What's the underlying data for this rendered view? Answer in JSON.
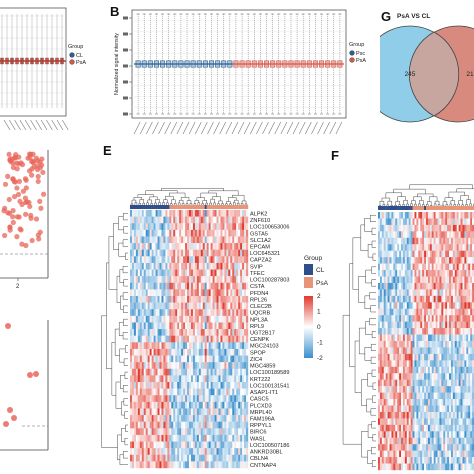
{
  "panels": {
    "a_right_edge": {
      "legend": {
        "title": "Group",
        "items": [
          {
            "name": "CL",
            "color": "#2e5d8e"
          },
          {
            "name": "PsA",
            "color": "#d2584a"
          }
        ]
      }
    },
    "b": {
      "label": "B",
      "ylabel": "Normalized signal intensity",
      "legend": {
        "title": "Group",
        "items": [
          {
            "name": "Psc",
            "color": "#2e5d8e"
          },
          {
            "name": "PsA",
            "color": "#d2584a"
          }
        ]
      }
    },
    "c_partial": {
      "tick_label": "2"
    },
    "d_partial": {},
    "e": {
      "label": "E",
      "legend_group": {
        "title": "Group",
        "items": [
          {
            "name": "CL",
            "color": "#2f4f8a"
          },
          {
            "name": "PsA",
            "color": "#e89478"
          }
        ]
      },
      "colorbar": {
        "ticks": [
          "2",
          "1",
          "0",
          "-1",
          "-2"
        ]
      }
    },
    "f": {
      "label": "F"
    },
    "g": {
      "label": "G",
      "title": "PsA VS CL",
      "left_count": "245",
      "right_count_partial": "21"
    }
  },
  "chart_data": [
    {
      "type": "heatmap",
      "panel": "E",
      "row_labels": [
        "ALPK2",
        "ZNF610",
        "LOC100653006",
        "GSTA5",
        "SLC1A2",
        "EPCAM",
        "LOC645321",
        "CAPZA2",
        "SVIP",
        "TFEC",
        "LOC100287803",
        "CSTA",
        "PFDN4",
        "RPL26",
        "CLEC2B",
        "UQCRB",
        "NPL3A",
        "RPL9",
        "UGT2B17",
        "CENPK",
        "MGC24103",
        "SPOP",
        "ZIC4",
        "MGC4859",
        "LOC100189589",
        "KRT222",
        "LOC100131541",
        "ASAP1-IT1",
        "CASC5",
        "PLCXD3",
        "MRPL40",
        "FAM196A",
        "RPPYL1",
        "BIRC6",
        "WASL",
        "LOC100507186",
        "ANKRD30BL",
        "CBLN4",
        "CNTNAP4"
      ],
      "column_groups": [
        "CL",
        "CL",
        "CL",
        "CL",
        "CL",
        "CL",
        "CL",
        "CL",
        "CL",
        "CL",
        "CL",
        "CL",
        "CL",
        "CL",
        "CL",
        "CL",
        "CL",
        "CL",
        "CL",
        "CL",
        "PsA",
        "PsA",
        "PsA",
        "PsA",
        "PsA",
        "PsA",
        "PsA",
        "PsA",
        "PsA",
        "PsA",
        "PsA",
        "PsA",
        "PsA",
        "PsA",
        "PsA",
        "PsA",
        "PsA",
        "PsA",
        "CL",
        "PsA",
        "PsA",
        "PsA",
        "PsA",
        "PsA",
        "PsA",
        "PsA",
        "PsA",
        "PsA",
        "PsA",
        "PsA",
        "PsA",
        "PsA",
        "PsA",
        "PsA",
        "PsA",
        "PsA",
        "PsA",
        "PsA",
        "PsA",
        "PsA"
      ],
      "color_scale": {
        "min": -2,
        "max": 2,
        "low": "#3a8fcc",
        "mid": "#ffffff",
        "high": "#e03a2e"
      }
    },
    {
      "type": "box",
      "panel": "B",
      "ylabel": "Normalized signal intensity",
      "groups": [
        "Psc",
        "PsA"
      ]
    },
    {
      "type": "heatmap",
      "panel": "F",
      "row_labels": []
    },
    {
      "type": "venn",
      "panel": "G",
      "title": "PsA VS CL",
      "sets": [
        {
          "count": "245",
          "color": "#8fcde8"
        },
        {
          "count": "21",
          "color": "#d98a7e"
        }
      ]
    }
  ]
}
